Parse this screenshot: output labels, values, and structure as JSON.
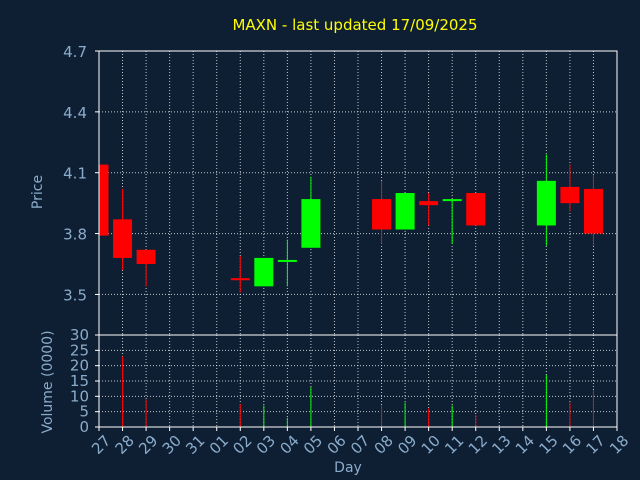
{
  "chart_data": {
    "type": "candlestick",
    "title": "MAXN - last updated 17/09/2025",
    "colors": {
      "background": "#0f1f33",
      "plot_background": "#0f1f33",
      "frame": "#ffffff",
      "grid": "#ffffff",
      "up": "#00ff00",
      "down": "#ff0000",
      "title": "#ffff00",
      "labels": "#8aaccb"
    },
    "price_panel": {
      "ylabel": "Price",
      "ylim": [
        3.3,
        4.7
      ],
      "yticks": [
        "3.5",
        "3.8",
        "4.1",
        "4.4",
        "4.7"
      ],
      "grid": true
    },
    "volume_panel": {
      "ylabel": "Volume (0000)",
      "ylim": [
        0,
        30
      ],
      "yticks": [
        "0",
        "5",
        "10",
        "15",
        "20",
        "25",
        "30"
      ],
      "grid": true
    },
    "xlabel": "Day",
    "x_categories": [
      "27",
      "28",
      "29",
      "30",
      "31",
      "01",
      "02",
      "03",
      "04",
      "05",
      "06",
      "07",
      "08",
      "09",
      "10",
      "11",
      "12",
      "13",
      "14",
      "15",
      "16",
      "17",
      "18"
    ],
    "candles": [
      {
        "day": "27",
        "open": 4.14,
        "high": 4.14,
        "low": 3.78,
        "close": 3.79,
        "volume": 0
      },
      {
        "day": "28",
        "open": 3.87,
        "high": 4.02,
        "low": 3.62,
        "close": 3.68,
        "volume": 23
      },
      {
        "day": "29",
        "open": 3.72,
        "high": 3.72,
        "low": 3.54,
        "close": 3.65,
        "volume": 9
      },
      {
        "day": "02",
        "open": 3.58,
        "high": 3.69,
        "low": 3.51,
        "close": 3.57,
        "volume": 7.5
      },
      {
        "day": "03",
        "open": 3.54,
        "high": 3.68,
        "low": 3.54,
        "close": 3.68,
        "volume": 7
      },
      {
        "day": "04",
        "open": 3.66,
        "high": 3.77,
        "low": 3.54,
        "close": 3.67,
        "volume": 3
      },
      {
        "day": "05",
        "open": 3.73,
        "high": 4.08,
        "low": 3.73,
        "close": 3.97,
        "volume": 13
      },
      {
        "day": "08",
        "open": 3.97,
        "high": 4.06,
        "low": 3.75,
        "close": 3.82,
        "volume": 7
      },
      {
        "day": "09",
        "open": 3.82,
        "high": 4.0,
        "low": 3.82,
        "close": 4.0,
        "volume": 8
      },
      {
        "day": "10",
        "open": 3.96,
        "high": 4.0,
        "low": 3.84,
        "close": 3.94,
        "volume": 6
      },
      {
        "day": "11",
        "open": 3.96,
        "high": 3.97,
        "low": 3.75,
        "close": 3.97,
        "volume": 7
      },
      {
        "day": "12",
        "open": 4.0,
        "high": 4.0,
        "low": 3.84,
        "close": 3.84,
        "volume": 4
      },
      {
        "day": "15",
        "open": 3.84,
        "high": 4.19,
        "low": 3.74,
        "close": 4.06,
        "volume": 17
      },
      {
        "day": "16",
        "open": 4.03,
        "high": 4.14,
        "low": 3.91,
        "close": 3.95,
        "volume": 8
      },
      {
        "day": "17",
        "open": 4.02,
        "high": 4.09,
        "low": 3.74,
        "close": 3.8,
        "volume": 12
      }
    ]
  }
}
